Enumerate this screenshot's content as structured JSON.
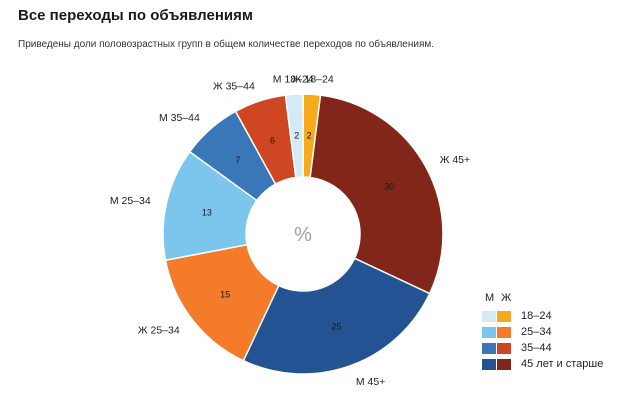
{
  "title": "Все переходы по объявлениям",
  "subtitle": "Приведены доли половозрастных групп в общем количестве переходов по объявлениям.",
  "chart_data": {
    "type": "pie",
    "center_label": "%",
    "slices": [
      {
        "label": "Ж 18–24",
        "value": 2,
        "color": "#f6ab1e"
      },
      {
        "label": "Ж 45+",
        "value": 30,
        "color": "#82261a"
      },
      {
        "label": "М 45+",
        "value": 25,
        "color": "#235393"
      },
      {
        "label": "Ж 25–34",
        "value": 15,
        "color": "#f47b29"
      },
      {
        "label": "М 25–34",
        "value": 13,
        "color": "#7cc5ed"
      },
      {
        "label": "М 35–44",
        "value": 7,
        "color": "#3977b8"
      },
      {
        "label": "Ж 35–44",
        "value": 6,
        "color": "#cf4722"
      },
      {
        "label": "М 18–24",
        "value": 2,
        "color": "#d2ebf7"
      }
    ]
  },
  "legend": {
    "header_m": "М",
    "header_w": "Ж",
    "rows": [
      {
        "label": "18–24",
        "m_color": "#d2ebf7",
        "w_color": "#f6ab1e"
      },
      {
        "label": "25–34",
        "m_color": "#7cc5ed",
        "w_color": "#f47b29"
      },
      {
        "label": "35–44",
        "m_color": "#3977b8",
        "w_color": "#cf4722"
      },
      {
        "label": "45 лет и старше",
        "m_color": "#235393",
        "w_color": "#82261a"
      }
    ]
  }
}
